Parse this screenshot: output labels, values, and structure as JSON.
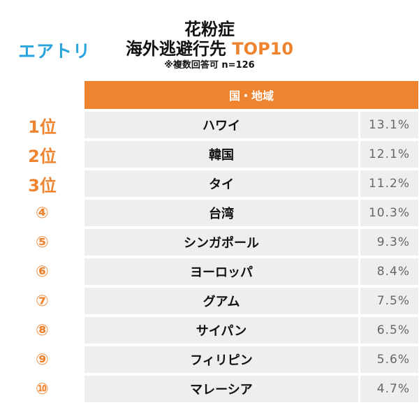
{
  "brand": {
    "logo_text": "エアトリ",
    "color": "#2aa4dc"
  },
  "title": {
    "line1": "花粉症",
    "line2_main": "海外逃避行先",
    "line2_accent": "TOP10",
    "subtitle": "※複数回答可 n=126"
  },
  "colors": {
    "accent": "#ee8430",
    "row_bg": "#eeeeee"
  },
  "chart_data": {
    "type": "table",
    "column_header": "国・地域",
    "rows": [
      {
        "rank": "1位",
        "name": "ハワイ",
        "value_label": "13.1%",
        "value": 13.1
      },
      {
        "rank": "2位",
        "name": "韓国",
        "value_label": "12.1%",
        "value": 12.1
      },
      {
        "rank": "3位",
        "name": "タイ",
        "value_label": "11.2%",
        "value": 11.2
      },
      {
        "rank": "④",
        "name": "台湾",
        "value_label": "10.3%",
        "value": 10.3
      },
      {
        "rank": "⑤",
        "name": "シンガポール",
        "value_label": "9.3%",
        "value": 9.3
      },
      {
        "rank": "⑥",
        "name": "ヨーロッパ",
        "value_label": "8.4%",
        "value": 8.4
      },
      {
        "rank": "⑦",
        "name": "グアム",
        "value_label": "7.5%",
        "value": 7.5
      },
      {
        "rank": "⑧",
        "name": "サイパン",
        "value_label": "6.5%",
        "value": 6.5
      },
      {
        "rank": "⑨",
        "name": "フィリピン",
        "value_label": "5.6%",
        "value": 5.6
      },
      {
        "rank": "⑩",
        "name": "マレーシア",
        "value_label": "4.7%",
        "value": 4.7
      }
    ]
  }
}
